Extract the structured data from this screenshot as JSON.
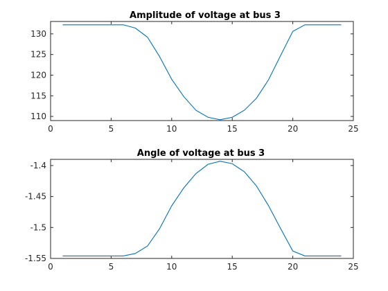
{
  "colors": {
    "series": "#0072bd",
    "axis": "#262626"
  },
  "chart_data": [
    {
      "type": "line",
      "title": "Amplitude of voltage at bus 3",
      "xlabel": "",
      "ylabel": "",
      "xlim": [
        0,
        25
      ],
      "ylim": [
        109,
        133
      ],
      "xticks": [
        0,
        5,
        10,
        15,
        20,
        25
      ],
      "xtick_labels": [
        "0",
        "5",
        "10",
        "15",
        "20",
        "25"
      ],
      "yticks": [
        110,
        115,
        120,
        125,
        130
      ],
      "ytick_labels": [
        "110",
        "115",
        "120",
        "125",
        "130"
      ],
      "grid": false,
      "x": [
        1,
        2,
        3,
        4,
        5,
        6,
        7,
        8,
        9,
        10,
        11,
        12,
        13,
        14,
        15,
        16,
        17,
        18,
        19,
        20,
        21,
        22,
        23,
        24
      ],
      "series": [
        {
          "values": [
            132.2,
            132.2,
            132.2,
            132.2,
            132.2,
            132.2,
            131.4,
            129.2,
            124.5,
            119.0,
            114.8,
            111.5,
            109.8,
            109.2,
            109.8,
            111.5,
            114.4,
            118.9,
            124.8,
            130.6,
            132.2,
            132.2,
            132.2,
            132.2
          ]
        }
      ]
    },
    {
      "type": "line",
      "title": "Angle of voltage at bus 3",
      "xlabel": "",
      "ylabel": "",
      "xlim": [
        0,
        25
      ],
      "ylim": [
        -1.55,
        -1.39
      ],
      "xticks": [
        0,
        5,
        10,
        15,
        20,
        25
      ],
      "xtick_labels": [
        "0",
        "5",
        "10",
        "15",
        "20",
        "25"
      ],
      "yticks": [
        -1.55,
        -1.5,
        -1.45,
        -1.4
      ],
      "ytick_labels": [
        "-1.55",
        "-1.5",
        "-1.45",
        "-1.4"
      ],
      "grid": false,
      "x": [
        1,
        2,
        3,
        4,
        5,
        6,
        7,
        8,
        9,
        10,
        11,
        12,
        13,
        14,
        15,
        16,
        17,
        18,
        19,
        20,
        21,
        22,
        23,
        24
      ],
      "series": [
        {
          "values": [
            -1.546,
            -1.546,
            -1.546,
            -1.546,
            -1.546,
            -1.546,
            -1.542,
            -1.53,
            -1.502,
            -1.465,
            -1.436,
            -1.413,
            -1.398,
            -1.393,
            -1.397,
            -1.41,
            -1.433,
            -1.465,
            -1.502,
            -1.538,
            -1.546,
            -1.546,
            -1.546,
            -1.546
          ]
        }
      ]
    }
  ]
}
